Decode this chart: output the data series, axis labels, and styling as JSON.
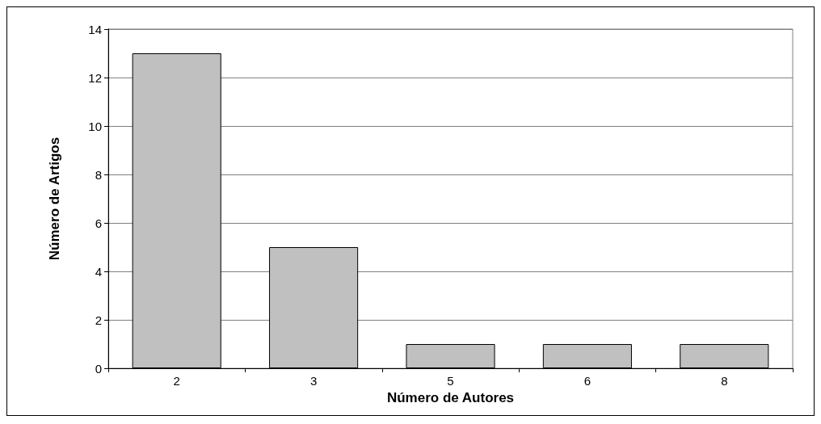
{
  "chart_data": {
    "type": "bar",
    "xlabel": "Número de Autores",
    "ylabel": "Número de Artigos",
    "categories": [
      "2",
      "3",
      "5",
      "6",
      "8"
    ],
    "values": [
      13,
      5,
      1,
      1,
      1
    ],
    "color": "#c0c0c0",
    "ylim": [
      0,
      14
    ],
    "yticks": [
      0,
      2,
      4,
      6,
      8,
      10,
      12,
      14
    ],
    "grid": "y"
  }
}
